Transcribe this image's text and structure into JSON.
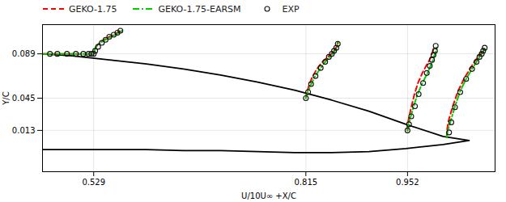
{
  "chart_data": {
    "type": "line",
    "xlabel": "U/10U∞ +X/C",
    "ylabel": "Y/C",
    "xlim": [
      0.46,
      1.07
    ],
    "ylim": [
      -0.028,
      0.118
    ],
    "xticks": [
      0.529,
      0.815,
      0.952
    ],
    "yticks": [
      0.013,
      0.045,
      0.089
    ],
    "grid": true,
    "legend": "upper left",
    "series": [
      {
        "color": "#000000",
        "line_style": "solid",
        "x": [
          0.46,
          0.5,
          0.55,
          0.6,
          0.65,
          0.7,
          0.75,
          0.8,
          0.85,
          0.9,
          0.95,
          1.0,
          1.035,
          null,
          0.46,
          0.5,
          0.55,
          0.6,
          0.65,
          0.7,
          0.75,
          0.8,
          0.85,
          0.9,
          0.95,
          1.0,
          1.035
        ],
        "y": [
          0.089,
          0.087,
          0.083,
          0.079,
          0.074,
          0.068,
          0.061,
          0.053,
          0.043,
          0.032,
          0.019,
          0.007,
          0.003,
          null,
          -0.006,
          -0.006,
          -0.006,
          -0.006,
          -0.007,
          -0.007,
          -0.008,
          -0.009,
          -0.009,
          -0.008,
          -0.005,
          -0.001,
          0.003
        ]
      },
      {
        "name": "GEKO-1.75",
        "color": "#ff0000",
        "line_style": "dashed",
        "x": [
          0.462,
          0.47,
          0.48,
          0.492,
          0.505,
          0.515,
          0.522,
          0.526,
          0.528,
          0.529,
          0.53,
          0.532,
          0.537,
          0.543,
          0.55,
          0.556,
          0.561,
          0.565,
          null,
          0.815,
          0.816,
          0.819,
          0.823,
          0.829,
          0.836,
          0.843,
          0.848,
          0.852,
          0.855,
          0.857,
          0.858,
          null,
          0.952,
          0.952,
          0.954,
          0.957,
          0.961,
          0.966,
          0.972,
          0.977,
          0.981,
          0.984,
          0.986,
          0.988,
          null,
          1.005,
          1.005,
          1.007,
          1.013,
          1.02,
          1.028,
          1.036,
          1.042,
          1.047,
          1.05,
          1.053,
          1.055
        ],
        "y": [
          0.089,
          0.089,
          0.089,
          0.089,
          0.089,
          0.089,
          0.089,
          0.089,
          0.089,
          0.089,
          0.092,
          0.096,
          0.1,
          0.103,
          0.106,
          0.108,
          0.11,
          0.112,
          null,
          0.045,
          0.05,
          0.057,
          0.065,
          0.073,
          0.08,
          0.085,
          0.088,
          0.091,
          0.094,
          0.097,
          0.101,
          null,
          0.013,
          0.018,
          0.026,
          0.036,
          0.048,
          0.06,
          0.07,
          0.077,
          0.082,
          0.087,
          0.091,
          0.096,
          null,
          0.006,
          0.012,
          0.022,
          0.037,
          0.052,
          0.064,
          0.074,
          0.081,
          0.086,
          0.089,
          0.091,
          0.094
        ]
      },
      {
        "name": "GEKO-1.75-EARSM",
        "color": "#00cc00",
        "line_style": "dashdot",
        "x": [
          0.462,
          0.47,
          0.48,
          0.492,
          0.505,
          0.515,
          0.522,
          0.526,
          0.528,
          0.529,
          0.53,
          0.532,
          0.538,
          0.545,
          0.552,
          0.558,
          0.563,
          0.567,
          null,
          0.815,
          0.817,
          0.821,
          0.826,
          0.833,
          0.84,
          0.846,
          0.85,
          0.853,
          0.856,
          0.858,
          0.859,
          null,
          0.952,
          0.953,
          0.956,
          0.96,
          0.965,
          0.972,
          0.979,
          0.983,
          0.986,
          0.988,
          0.99,
          0.991,
          null,
          1.005,
          1.006,
          1.01,
          1.016,
          1.023,
          1.031,
          1.039,
          1.045,
          1.049,
          1.052,
          1.054,
          1.056
        ],
        "y": [
          0.089,
          0.089,
          0.089,
          0.089,
          0.089,
          0.089,
          0.089,
          0.089,
          0.089,
          0.089,
          0.092,
          0.096,
          0.1,
          0.103,
          0.106,
          0.108,
          0.11,
          0.112,
          null,
          0.045,
          0.05,
          0.057,
          0.065,
          0.073,
          0.08,
          0.085,
          0.088,
          0.091,
          0.094,
          0.097,
          0.101,
          null,
          0.013,
          0.018,
          0.026,
          0.036,
          0.048,
          0.06,
          0.07,
          0.077,
          0.082,
          0.087,
          0.091,
          0.096,
          null,
          0.006,
          0.012,
          0.022,
          0.037,
          0.052,
          0.064,
          0.074,
          0.081,
          0.086,
          0.089,
          0.091,
          0.094
        ]
      },
      {
        "name": "EXP",
        "type": "scatter",
        "marker": "circle",
        "color": "#111111",
        "x": [
          0.47,
          0.48,
          0.493,
          0.505,
          0.515,
          0.522,
          0.526,
          0.529,
          0.531,
          0.535,
          0.54,
          0.545,
          0.55,
          0.556,
          0.561,
          0.565,
          null,
          0.815,
          0.818,
          0.822,
          0.828,
          0.835,
          0.841,
          0.846,
          0.85,
          0.853,
          0.856,
          0.858,
          null,
          0.952,
          0.954,
          0.957,
          0.962,
          0.967,
          0.973,
          0.978,
          0.982,
          0.985,
          0.987,
          0.989,
          0.99,
          null,
          1.008,
          1.011,
          1.016,
          1.023,
          1.031,
          1.039,
          1.045,
          1.049,
          1.052,
          1.054,
          1.056
        ],
        "y": [
          0.089,
          0.089,
          0.089,
          0.089,
          0.089,
          0.089,
          0.089,
          0.089,
          0.092,
          0.096,
          0.1,
          0.103,
          0.106,
          0.108,
          0.11,
          0.112,
          null,
          0.045,
          0.051,
          0.059,
          0.067,
          0.075,
          0.081,
          0.086,
          0.089,
          0.092,
          0.095,
          0.099,
          null,
          0.013,
          0.019,
          0.027,
          0.037,
          0.049,
          0.06,
          0.07,
          0.077,
          0.083,
          0.088,
          0.092,
          0.097,
          null,
          0.011,
          0.021,
          0.036,
          0.051,
          0.064,
          0.074,
          0.081,
          0.086,
          0.089,
          0.092,
          0.095
        ]
      }
    ]
  }
}
